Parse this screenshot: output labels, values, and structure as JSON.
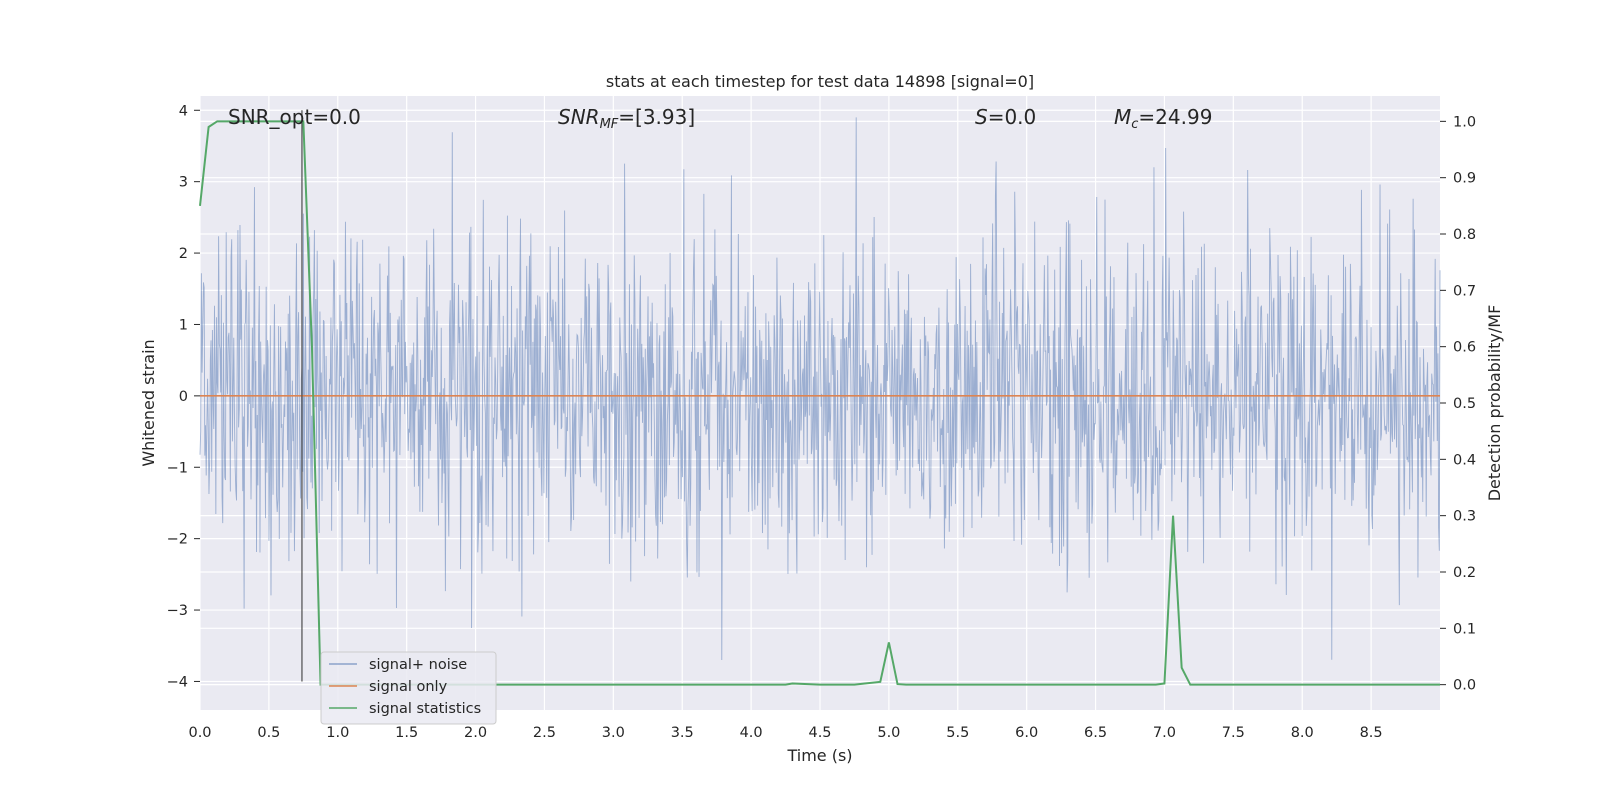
{
  "chart_data": {
    "type": "line",
    "title": "stats at each timestep for test data 14898 [signal=0]",
    "xlabel": "Time (s)",
    "ylabel": "Whitened strain",
    "y2label": "Detection probability/MF",
    "xlim": [
      0.0,
      9.0
    ],
    "ylim": [
      -4.4,
      4.2
    ],
    "y2lim": [
      -0.045,
      1.045
    ],
    "x_ticks": [
      0.0,
      0.5,
      1.0,
      1.5,
      2.0,
      2.5,
      3.0,
      3.5,
      4.0,
      4.5,
      5.0,
      5.5,
      6.0,
      6.5,
      7.0,
      7.5,
      8.0,
      8.5
    ],
    "x_tick_labels": [
      "0.0",
      "0.5",
      "1.0",
      "1.5",
      "2.0",
      "2.5",
      "3.0",
      "3.5",
      "4.0",
      "4.5",
      "5.0",
      "5.5",
      "6.0",
      "6.5",
      "7.0",
      "7.5",
      "8.0",
      "8.5"
    ],
    "y_ticks": [
      -4,
      -3,
      -2,
      -1,
      0,
      1,
      2,
      3,
      4
    ],
    "y_tick_labels": [
      "−4",
      "−3",
      "−2",
      "−1",
      "0",
      "1",
      "2",
      "3",
      "4"
    ],
    "y2_ticks": [
      0.0,
      0.1,
      0.2,
      0.3,
      0.4,
      0.5,
      0.6,
      0.7,
      0.8,
      0.9,
      1.0
    ],
    "y2_tick_labels": [
      "0.0",
      "0.1",
      "0.2",
      "0.3",
      "0.4",
      "0.5",
      "0.6",
      "0.7",
      "0.8",
      "0.9",
      "1.0"
    ],
    "grid": true,
    "legend_placement": "lower-left",
    "annotations": {
      "snr_opt": "SNR_opt=0.0",
      "snr_mf_base": "SNR",
      "snr_mf_sub": "MF",
      "snr_mf_value": "=[3.93]",
      "s_symbol": "S",
      "s_value": "=0.0",
      "mc_symbol": "M",
      "mc_sub": "c",
      "mc_value": "=24.99"
    },
    "series": [
      {
        "name": "signal+ noise",
        "color": "#4c72b0",
        "axis": "left",
        "kind": "noise",
        "t_start": 0.0,
        "t_end": 9.0,
        "samples": 1800,
        "y_min": -3.7,
        "y_max": 3.9
      },
      {
        "name": "signal only",
        "color": "#dd8452",
        "axis": "left",
        "x": [
          0.0,
          9.0
        ],
        "values": [
          0.0,
          0.0
        ]
      },
      {
        "name": "signal statistics",
        "color": "#55a868",
        "axis": "right",
        "x": [
          0.0,
          0.0625,
          0.125,
          0.1875,
          0.25,
          0.3125,
          0.375,
          0.4375,
          0.5,
          0.5625,
          0.625,
          0.6875,
          0.75,
          0.8125,
          0.875,
          0.9375,
          1.0,
          1.5,
          2.0,
          2.5,
          3.0,
          3.5,
          4.0,
          4.25,
          4.3,
          4.5,
          4.75,
          4.9375,
          5.0,
          5.0625,
          5.125,
          5.5,
          6.0,
          6.5,
          6.9375,
          7.0,
          7.0625,
          7.125,
          7.1875,
          7.5,
          8.0,
          8.5,
          9.0
        ],
        "values": [
          0.85,
          0.99,
          1.0,
          1.0,
          1.0,
          1.0,
          1.0,
          1.0,
          1.0,
          1.0,
          1.0,
          1.0,
          1.0,
          0.6,
          0.0,
          0.0,
          0.0,
          0.0,
          0.0,
          0.0,
          0.0,
          0.0,
          0.0,
          0.0,
          0.002,
          0.0,
          0.0,
          0.005,
          0.075,
          0.001,
          0.0,
          0.0,
          0.0,
          0.0,
          0.0,
          0.002,
          0.3,
          0.03,
          0.0,
          0.0,
          0.0,
          0.0,
          0.0
        ]
      }
    ],
    "marker_line": {
      "x": 0.74,
      "y_from": -4.0,
      "y_to": 4.0,
      "color": "#4d4d4d"
    }
  }
}
